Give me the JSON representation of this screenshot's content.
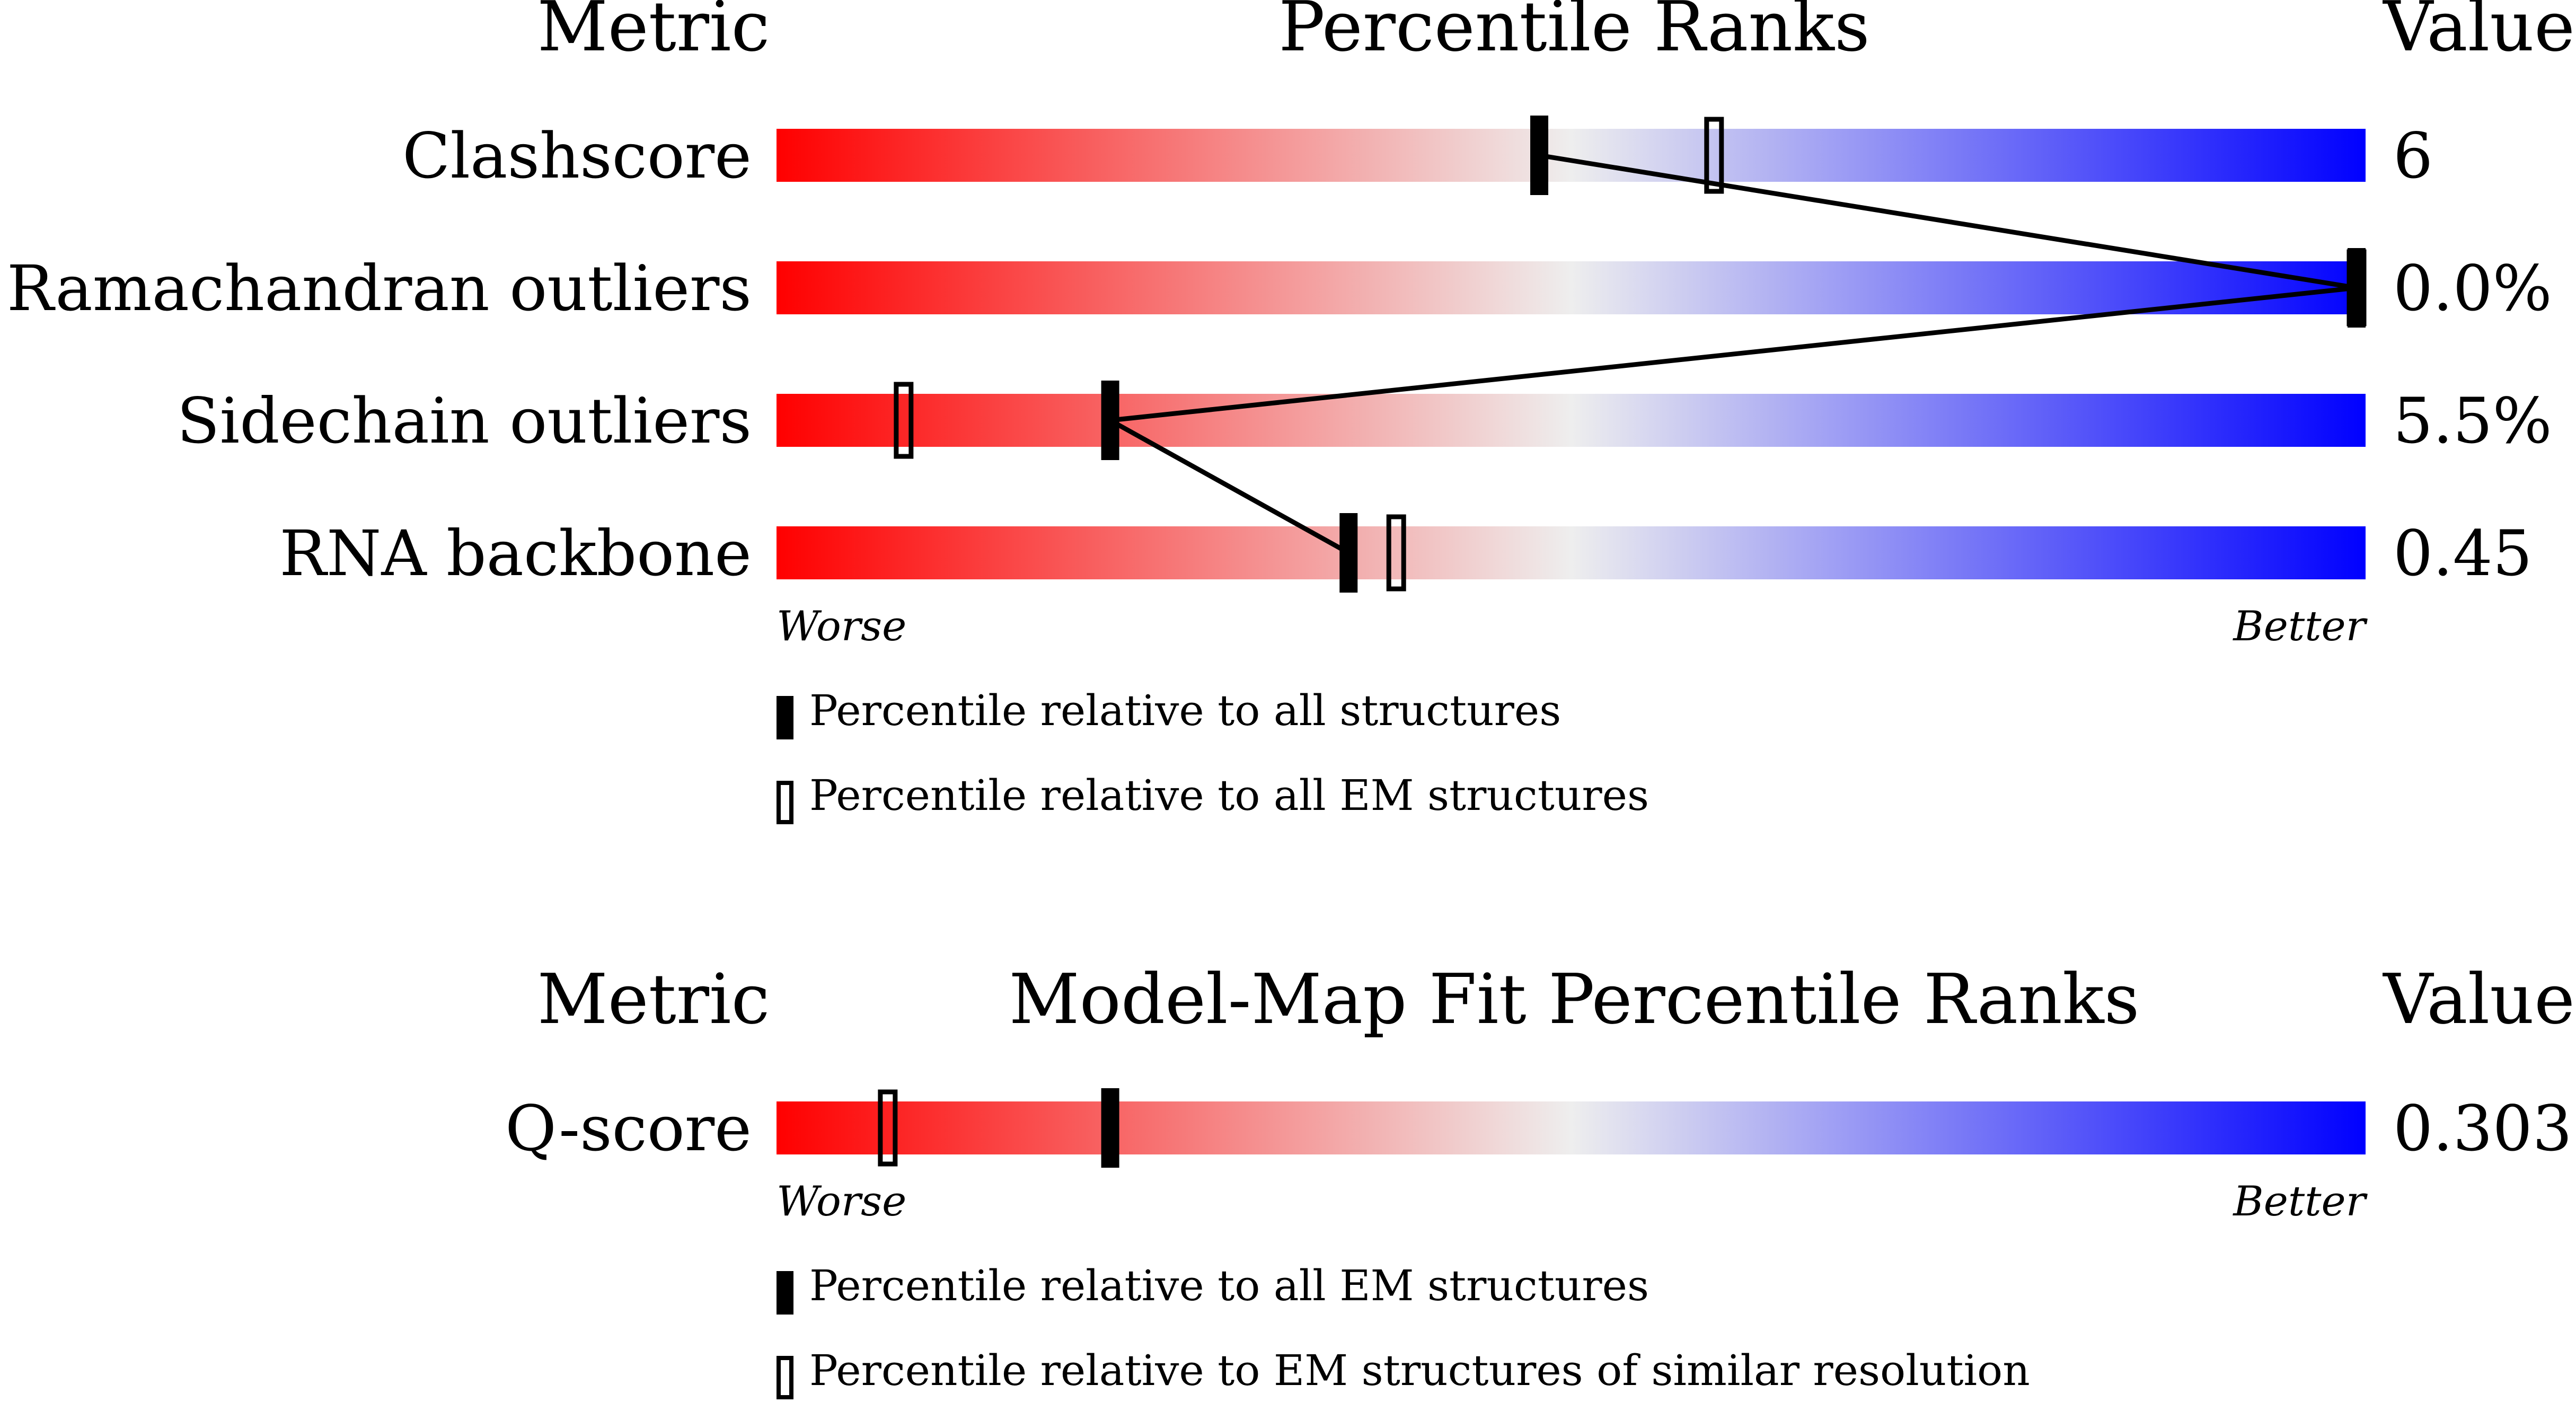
{
  "chart_data": [
    {
      "type": "bar",
      "header": {
        "metric": "Metric",
        "title": "Percentile Ranks",
        "value": "Value"
      },
      "xlim": [
        0,
        100
      ],
      "axis": {
        "worse": "Worse",
        "better": "Better"
      },
      "colors": {
        "worse": "#ff0000",
        "middle": "#eeeeee",
        "better": "#0000ff",
        "marker": "#000000"
      },
      "rows": [
        {
          "metric": "Clashscore",
          "value": "6",
          "percentile_all": 48,
          "percentile_em": 59
        },
        {
          "metric": "Ramachandran outliers",
          "value": "0.0%",
          "percentile_all": 100,
          "percentile_em": 100
        },
        {
          "metric": "Sidechain outliers",
          "value": "5.5%",
          "percentile_all": 21,
          "percentile_em": 8
        },
        {
          "metric": "RNA backbone",
          "value": "0.45",
          "percentile_all": 36,
          "percentile_em": 39
        }
      ],
      "legend": [
        {
          "marker": "filled",
          "label": "Percentile relative to all structures"
        },
        {
          "marker": "open",
          "label": "Percentile relative to all EM structures"
        }
      ]
    },
    {
      "type": "bar",
      "header": {
        "metric": "Metric",
        "title": "Model-Map Fit Percentile Ranks",
        "value": "Value"
      },
      "xlim": [
        0,
        100
      ],
      "axis": {
        "worse": "Worse",
        "better": "Better"
      },
      "colors": {
        "worse": "#ff0000",
        "middle": "#eeeeee",
        "better": "#0000ff",
        "marker": "#000000"
      },
      "rows": [
        {
          "metric": "Q-score",
          "value": "0.303",
          "percentile_all": 21,
          "percentile_em": 7
        }
      ],
      "legend": [
        {
          "marker": "filled",
          "label": "Percentile relative to all EM structures"
        },
        {
          "marker": "open",
          "label": "Percentile relative to EM structures of similar resolution"
        }
      ]
    }
  ]
}
